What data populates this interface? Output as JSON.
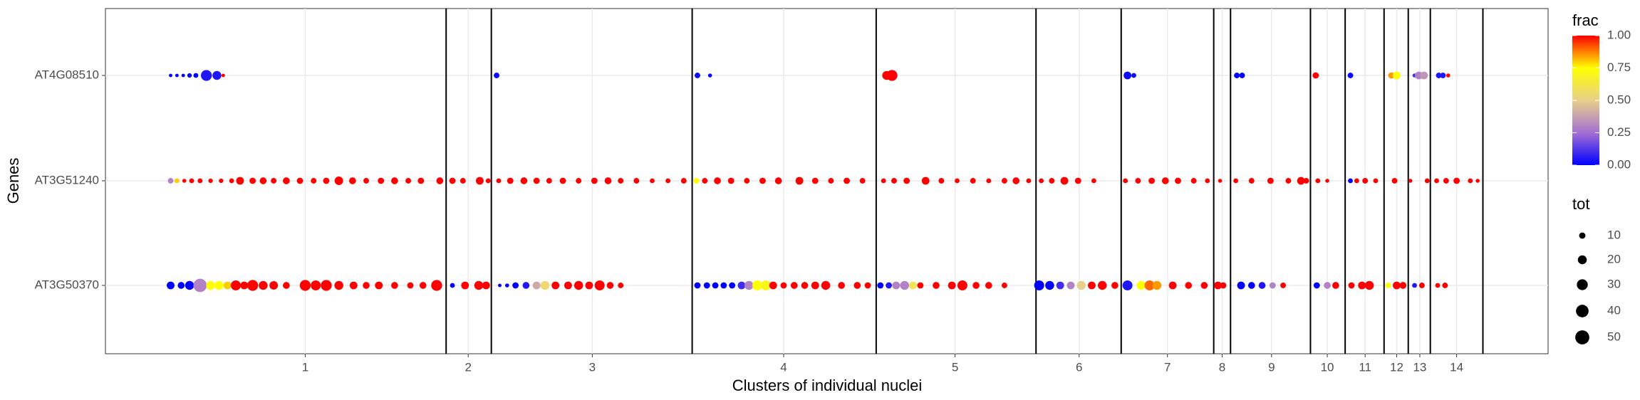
{
  "chart_data": {
    "type": "dot",
    "x_label": "Clusters of individual nuclei",
    "y_label": "Genes",
    "categories": [
      "AT4G08510",
      "AT3G51240",
      "AT3G50370"
    ],
    "xlim": [
      0,
      1372
    ],
    "xticks": [
      {
        "value": 190,
        "label": "1"
      },
      {
        "value": 345,
        "label": "2"
      },
      {
        "value": 463,
        "label": "3"
      },
      {
        "value": 645,
        "label": "4"
      },
      {
        "value": 808,
        "label": "5"
      },
      {
        "value": 926,
        "label": "6"
      },
      {
        "value": 1010,
        "label": "7"
      },
      {
        "value": 1062,
        "label": "8"
      },
      {
        "value": 1109,
        "label": "9"
      },
      {
        "value": 1162,
        "label": "10"
      },
      {
        "value": 1198,
        "label": "11"
      },
      {
        "value": 1228,
        "label": "12"
      },
      {
        "value": 1250,
        "label": "13"
      },
      {
        "value": 1285,
        "label": "14"
      }
    ],
    "boundaries": [
      324,
      367,
      558,
      733,
      885,
      966,
      1054,
      1070,
      1146,
      1179,
      1216,
      1239,
      1260,
      1310
    ],
    "grid": true,
    "rows": [
      {
        "x": [
          62,
          68,
          74,
          80,
          86,
          96,
          106,
          112,
          372,
          563,
          575,
          743,
          748,
          972,
          978,
          1076,
          1081,
          1151,
          1184,
          1223,
          1228,
          1245,
          1249,
          1254,
          1268,
          1272,
          1277
        ],
        "tot": [
          3,
          3,
          3,
          5,
          6,
          30,
          20,
          3,
          8,
          8,
          4,
          20,
          30,
          15,
          6,
          8,
          8,
          10,
          8,
          10,
          15,
          4,
          15,
          15,
          8,
          8,
          4
        ],
        "frac": [
          0,
          0,
          0,
          0,
          0,
          0.05,
          0.05,
          1,
          0.02,
          0.02,
          0.02,
          1,
          1,
          0.02,
          0.02,
          0,
          0,
          1,
          0.02,
          0.85,
          0.75,
          0.1,
          0.3,
          0.35,
          0.05,
          0.05,
          1
        ]
      },
      {
        "x": [
          62,
          68,
          75,
          82,
          90,
          100,
          110,
          120,
          128,
          140,
          150,
          160,
          172,
          185,
          198,
          210,
          222,
          235,
          248,
          262,
          275,
          288,
          300,
          318,
          330,
          340,
          356,
          364,
          374,
          385,
          398,
          410,
          422,
          435,
          450,
          465,
          478,
          490,
          505,
          520,
          535,
          550,
          562,
          570,
          582,
          595,
          610,
          625,
          640,
          660,
          675,
          690,
          705,
          720,
          740,
          750,
          762,
          780,
          795,
          810,
          825,
          840,
          855,
          866,
          878,
          890,
          900,
          912,
          925,
          940,
          970,
          982,
          995,
          1008,
          1020,
          1035,
          1048,
          1060,
          1075,
          1090,
          1108,
          1125,
          1137,
          1142,
          1153,
          1162,
          1184,
          1190,
          1198,
          1208,
          1226,
          1241,
          1257,
          1266,
          1275,
          1285,
          1298,
          1305
        ],
        "tot": [
          8,
          6,
          4,
          6,
          6,
          5,
          5,
          6,
          15,
          10,
          12,
          8,
          12,
          10,
          8,
          10,
          18,
          12,
          8,
          10,
          12,
          8,
          10,
          12,
          10,
          8,
          15,
          6,
          6,
          10,
          12,
          10,
          8,
          10,
          8,
          10,
          12,
          8,
          8,
          6,
          6,
          8,
          8,
          8,
          12,
          10,
          8,
          10,
          12,
          15,
          10,
          8,
          10,
          8,
          6,
          8,
          10,
          15,
          8,
          6,
          8,
          6,
          8,
          12,
          6,
          6,
          8,
          15,
          10,
          6,
          6,
          8,
          10,
          12,
          10,
          8,
          6,
          4,
          6,
          8,
          10,
          8,
          15,
          8,
          6,
          4,
          6,
          6,
          8,
          6,
          8,
          4,
          6,
          6,
          8,
          10,
          6,
          4
        ],
        "frac": [
          0.3,
          0.8,
          1,
          1,
          1,
          1,
          1,
          1,
          1,
          1,
          1,
          1,
          1,
          1,
          1,
          1,
          1,
          1,
          1,
          1,
          1,
          1,
          1,
          1,
          1,
          1,
          1,
          1,
          1,
          1,
          1,
          1,
          1,
          1,
          1,
          1,
          1,
          1,
          1,
          1,
          1,
          1,
          0.75,
          1,
          1,
          1,
          1,
          1,
          1,
          1,
          1,
          1,
          1,
          1,
          1,
          1,
          1,
          1,
          1,
          1,
          1,
          1,
          1,
          1,
          1,
          1,
          1,
          1,
          1,
          1,
          1,
          1,
          1,
          1,
          1,
          1,
          1,
          1,
          1,
          1,
          1,
          1,
          1,
          1,
          1,
          1,
          0,
          1,
          1,
          1,
          1,
          1,
          1,
          1,
          1,
          1,
          1,
          1
        ]
      },
      {
        "x": [
          62,
          72,
          80,
          90,
          100,
          108,
          116,
          124,
          132,
          140,
          150,
          160,
          172,
          190,
          200,
          210,
          222,
          236,
          248,
          260,
          275,
          290,
          302,
          315,
          330,
          342,
          355,
          362,
          375,
          382,
          390,
          400,
          410,
          418,
          428,
          440,
          450,
          460,
          470,
          480,
          490,
          563,
          572,
          580,
          588,
          596,
          605,
          612,
          620,
          628,
          635,
          645,
          655,
          665,
          675,
          685,
          700,
          715,
          725,
          737,
          745,
          752,
          760,
          768,
          775,
          790,
          805,
          815,
          828,
          840,
          855,
          888,
          898,
          908,
          918,
          928,
          938,
          948,
          960,
          972,
          985,
          993,
          1000,
          1015,
          1030,
          1045,
          1058,
          1063,
          1080,
          1090,
          1100,
          1110,
          1120,
          1152,
          1162,
          1170,
          1185,
          1195,
          1202,
          1220,
          1228,
          1234,
          1245,
          1252,
          1267,
          1274
        ],
        "tot": [
          15,
          12,
          20,
          45,
          20,
          20,
          15,
          25,
          15,
          30,
          20,
          18,
          12,
          30,
          25,
          30,
          20,
          15,
          12,
          15,
          12,
          10,
          12,
          30,
          6,
          15,
          20,
          15,
          3,
          4,
          10,
          12,
          15,
          20,
          15,
          15,
          20,
          15,
          25,
          12,
          8,
          10,
          10,
          10,
          10,
          10,
          15,
          20,
          25,
          25,
          15,
          10,
          12,
          12,
          15,
          20,
          12,
          12,
          10,
          10,
          10,
          15,
          20,
          15,
          10,
          12,
          15,
          25,
          12,
          12,
          8,
          25,
          20,
          15,
          15,
          20,
          15,
          20,
          12,
          25,
          20,
          25,
          20,
          15,
          12,
          12,
          15,
          10,
          15,
          12,
          12,
          10,
          8,
          10,
          12,
          12,
          10,
          15,
          20,
          8,
          15,
          12,
          6,
          8,
          6,
          8
        ],
        "frac": [
          0,
          0,
          0,
          0.3,
          0.75,
          0.75,
          0.8,
          1,
          1,
          1,
          1,
          1,
          1,
          1,
          1,
          1,
          1,
          1,
          1,
          1,
          1,
          1,
          1,
          1,
          0,
          1,
          1,
          1,
          0,
          0,
          0,
          0.05,
          0.4,
          0.55,
          1,
          1,
          1,
          1,
          1,
          1,
          1,
          0,
          0,
          0,
          0,
          0,
          0.1,
          0.3,
          0.75,
          0.7,
          1,
          1,
          1,
          1,
          1,
          1,
          1,
          1,
          1,
          0,
          0.05,
          0.3,
          0.3,
          0.6,
          1,
          1,
          1,
          1,
          1,
          1,
          1,
          0,
          0,
          0.1,
          0.3,
          0.5,
          1,
          1,
          1,
          0.05,
          0.75,
          0.9,
          0.85,
          1,
          1,
          1,
          1,
          1,
          0,
          0,
          0.05,
          0.3,
          1,
          0,
          0.3,
          1,
          1,
          1,
          1,
          0.75,
          1,
          1,
          0.05,
          1,
          1,
          1
        ]
      }
    ],
    "frac_title": "frac",
    "frac_colors": [
      "#0000ff",
      "#a46fd3",
      "#e8d08a",
      "#ffff00",
      "#ff0000"
    ],
    "frac_lim": [
      0,
      1
    ],
    "frac_ticks": [
      {
        "value": 0,
        "label": "0.00"
      },
      {
        "value": 0.25,
        "label": "0.25"
      },
      {
        "value": 0.5,
        "label": "0.50"
      },
      {
        "value": 0.75,
        "label": "0.75"
      },
      {
        "value": 1,
        "label": "1.00"
      }
    ],
    "tot_title": "tot",
    "tot_ticks": [
      10,
      20,
      30,
      40,
      50
    ]
  }
}
